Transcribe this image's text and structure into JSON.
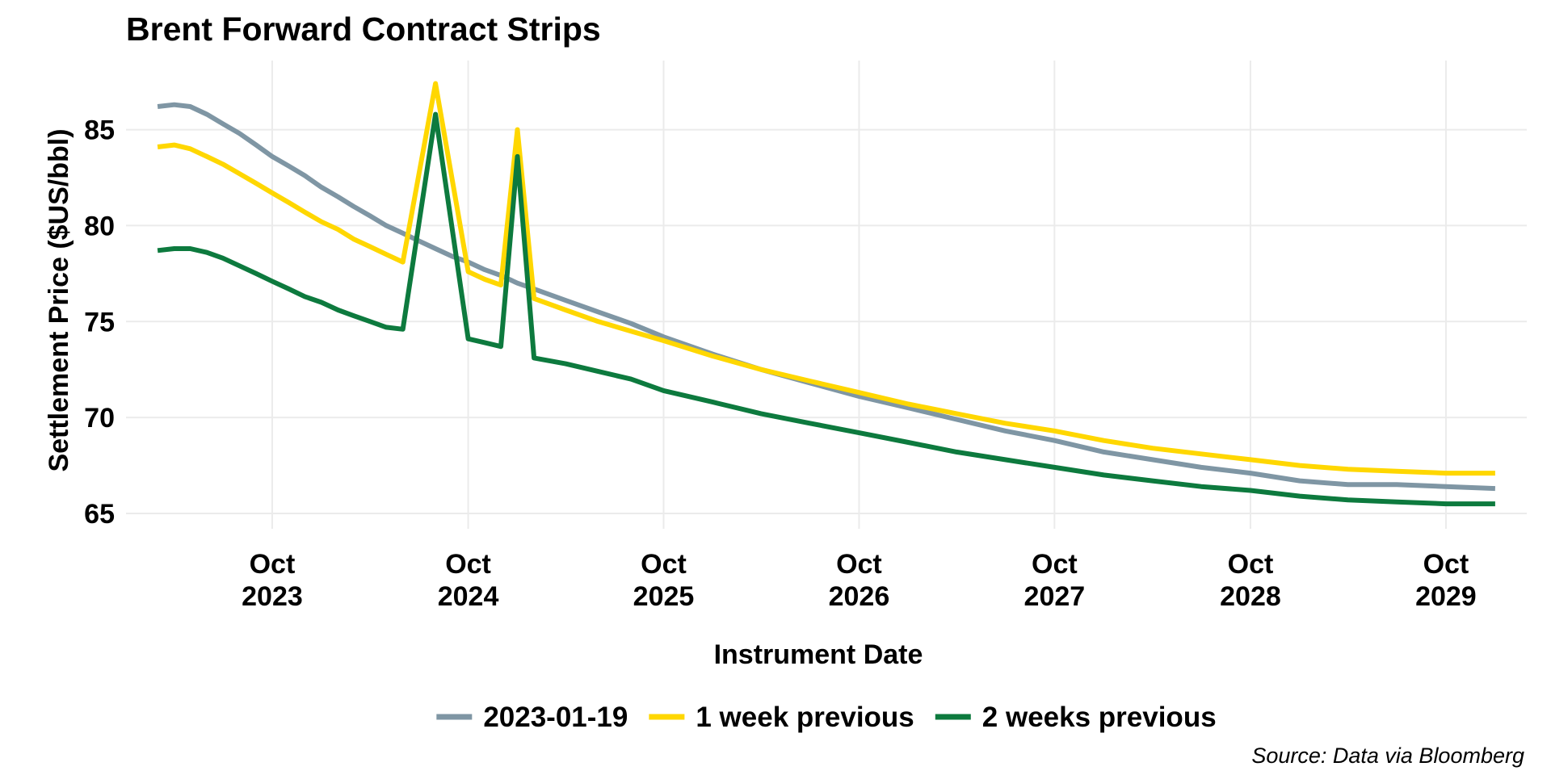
{
  "chart_data": {
    "type": "line",
    "title": "Brent Forward Contract Strips",
    "xlabel": "Instrument Date",
    "ylabel": "Settlement Price ($US/bbl)",
    "source": "Source: Data via Bloomberg",
    "ylim": [
      64.2,
      88.6
    ],
    "xlim": [
      "2023-01-01",
      "2030-03-01"
    ],
    "y_ticks": [
      65,
      70,
      75,
      80,
      85
    ],
    "x_ticks": [
      {
        "date": "2023-10-01",
        "month": "Oct",
        "year": "2023"
      },
      {
        "date": "2024-10-01",
        "month": "Oct",
        "year": "2024"
      },
      {
        "date": "2025-10-01",
        "month": "Oct",
        "year": "2025"
      },
      {
        "date": "2026-10-01",
        "month": "Oct",
        "year": "2026"
      },
      {
        "date": "2027-10-01",
        "month": "Oct",
        "year": "2027"
      },
      {
        "date": "2028-10-01",
        "month": "Oct",
        "year": "2028"
      },
      {
        "date": "2029-10-01",
        "month": "Oct",
        "year": "2029"
      }
    ],
    "grid": true,
    "legend_position": "bottom",
    "series": [
      {
        "name": "2023-01-19",
        "color": "#7f96a4",
        "points": [
          [
            "2023-03-01",
            86.2
          ],
          [
            "2023-04-01",
            86.3
          ],
          [
            "2023-05-01",
            86.2
          ],
          [
            "2023-06-01",
            85.8
          ],
          [
            "2023-07-01",
            85.3
          ],
          [
            "2023-08-01",
            84.8
          ],
          [
            "2023-09-01",
            84.2
          ],
          [
            "2023-10-01",
            83.6
          ],
          [
            "2023-11-01",
            83.1
          ],
          [
            "2023-12-01",
            82.6
          ],
          [
            "2024-01-01",
            82.0
          ],
          [
            "2024-02-01",
            81.5
          ],
          [
            "2024-03-01",
            81.0
          ],
          [
            "2024-04-01",
            80.5
          ],
          [
            "2024-05-01",
            80.0
          ],
          [
            "2024-06-01",
            79.6
          ],
          [
            "2024-07-01",
            79.2
          ],
          [
            "2024-08-01",
            78.8
          ],
          [
            "2024-09-01",
            78.4
          ],
          [
            "2024-10-01",
            78.1
          ],
          [
            "2024-11-01",
            77.7
          ],
          [
            "2024-12-01",
            77.4
          ],
          [
            "2025-01-01",
            77.0
          ],
          [
            "2025-02-01",
            76.7
          ],
          [
            "2025-04-01",
            76.1
          ],
          [
            "2025-06-01",
            75.5
          ],
          [
            "2025-08-01",
            74.9
          ],
          [
            "2025-10-01",
            74.2
          ],
          [
            "2026-01-01",
            73.3
          ],
          [
            "2026-04-01",
            72.5
          ],
          [
            "2026-07-01",
            71.8
          ],
          [
            "2026-10-01",
            71.1
          ],
          [
            "2027-01-01",
            70.5
          ],
          [
            "2027-04-01",
            69.9
          ],
          [
            "2027-07-01",
            69.3
          ],
          [
            "2027-10-01",
            68.8
          ],
          [
            "2028-01-01",
            68.2
          ],
          [
            "2028-04-01",
            67.8
          ],
          [
            "2028-07-01",
            67.4
          ],
          [
            "2028-10-01",
            67.1
          ],
          [
            "2029-01-01",
            66.7
          ],
          [
            "2029-04-01",
            66.5
          ],
          [
            "2029-07-01",
            66.5
          ],
          [
            "2029-10-01",
            66.4
          ],
          [
            "2030-01-01",
            66.3
          ]
        ]
      },
      {
        "name": "1 week previous",
        "color": "#ffd700",
        "points": [
          [
            "2023-03-01",
            84.1
          ],
          [
            "2023-04-01",
            84.2
          ],
          [
            "2023-05-01",
            84.0
          ],
          [
            "2023-06-01",
            83.6
          ],
          [
            "2023-07-01",
            83.2
          ],
          [
            "2023-08-01",
            82.7
          ],
          [
            "2023-09-01",
            82.2
          ],
          [
            "2023-10-01",
            81.7
          ],
          [
            "2023-11-01",
            81.2
          ],
          [
            "2023-12-01",
            80.7
          ],
          [
            "2024-01-01",
            80.2
          ],
          [
            "2024-02-01",
            79.8
          ],
          [
            "2024-03-01",
            79.3
          ],
          [
            "2024-04-01",
            78.9
          ],
          [
            "2024-05-01",
            78.5
          ],
          [
            "2024-06-01",
            78.1
          ],
          [
            "2024-08-01",
            87.4
          ],
          [
            "2024-10-01",
            77.6
          ],
          [
            "2024-11-01",
            77.2
          ],
          [
            "2024-12-01",
            76.9
          ],
          [
            "2025-01-01",
            85.0
          ],
          [
            "2025-02-01",
            76.2
          ],
          [
            "2025-04-01",
            75.6
          ],
          [
            "2025-06-01",
            75.0
          ],
          [
            "2025-08-01",
            74.5
          ],
          [
            "2025-10-01",
            74.0
          ],
          [
            "2026-01-01",
            73.2
          ],
          [
            "2026-04-01",
            72.5
          ],
          [
            "2026-07-01",
            71.9
          ],
          [
            "2026-10-01",
            71.3
          ],
          [
            "2027-01-01",
            70.7
          ],
          [
            "2027-04-01",
            70.2
          ],
          [
            "2027-07-01",
            69.7
          ],
          [
            "2027-10-01",
            69.3
          ],
          [
            "2028-01-01",
            68.8
          ],
          [
            "2028-04-01",
            68.4
          ],
          [
            "2028-07-01",
            68.1
          ],
          [
            "2028-10-01",
            67.8
          ],
          [
            "2029-01-01",
            67.5
          ],
          [
            "2029-04-01",
            67.3
          ],
          [
            "2029-07-01",
            67.2
          ],
          [
            "2029-10-01",
            67.1
          ],
          [
            "2030-01-01",
            67.1
          ]
        ]
      },
      {
        "name": "2 weeks previous",
        "color": "#0d7a3e",
        "points": [
          [
            "2023-03-01",
            78.7
          ],
          [
            "2023-04-01",
            78.8
          ],
          [
            "2023-05-01",
            78.8
          ],
          [
            "2023-06-01",
            78.6
          ],
          [
            "2023-07-01",
            78.3
          ],
          [
            "2023-08-01",
            77.9
          ],
          [
            "2023-09-01",
            77.5
          ],
          [
            "2023-10-01",
            77.1
          ],
          [
            "2023-11-01",
            76.7
          ],
          [
            "2023-12-01",
            76.3
          ],
          [
            "2024-01-01",
            76.0
          ],
          [
            "2024-02-01",
            75.6
          ],
          [
            "2024-03-01",
            75.3
          ],
          [
            "2024-04-01",
            75.0
          ],
          [
            "2024-05-01",
            74.7
          ],
          [
            "2024-06-01",
            74.6
          ],
          [
            "2024-08-01",
            85.8
          ],
          [
            "2024-10-01",
            74.1
          ],
          [
            "2024-11-01",
            73.9
          ],
          [
            "2024-12-01",
            73.7
          ],
          [
            "2025-01-01",
            83.6
          ],
          [
            "2025-02-01",
            73.1
          ],
          [
            "2025-04-01",
            72.8
          ],
          [
            "2025-06-01",
            72.4
          ],
          [
            "2025-08-01",
            72.0
          ],
          [
            "2025-10-01",
            71.4
          ],
          [
            "2026-01-01",
            70.8
          ],
          [
            "2026-04-01",
            70.2
          ],
          [
            "2026-07-01",
            69.7
          ],
          [
            "2026-10-01",
            69.2
          ],
          [
            "2027-01-01",
            68.7
          ],
          [
            "2027-04-01",
            68.2
          ],
          [
            "2027-07-01",
            67.8
          ],
          [
            "2027-10-01",
            67.4
          ],
          [
            "2028-01-01",
            67.0
          ],
          [
            "2028-04-01",
            66.7
          ],
          [
            "2028-07-01",
            66.4
          ],
          [
            "2028-10-01",
            66.2
          ],
          [
            "2029-01-01",
            65.9
          ],
          [
            "2029-04-01",
            65.7
          ],
          [
            "2029-07-01",
            65.6
          ],
          [
            "2029-10-01",
            65.5
          ],
          [
            "2030-01-01",
            65.5
          ]
        ]
      }
    ]
  }
}
